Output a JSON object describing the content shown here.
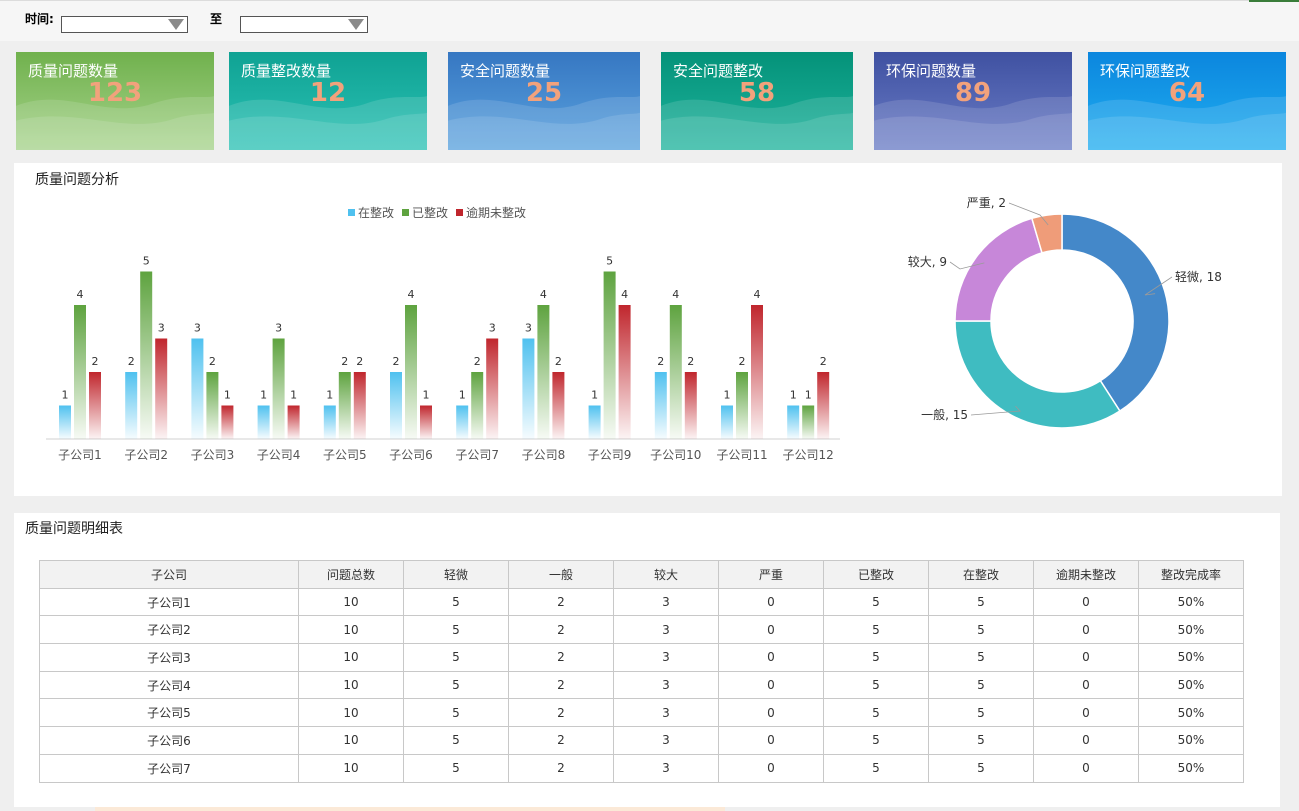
{
  "filter": {
    "time_label": "时间:",
    "to_label": "至",
    "start_value": "",
    "end_value": ""
  },
  "kpis": [
    {
      "title": "质量问题数量",
      "value": "123",
      "color": "#6aaf4c"
    },
    {
      "title": "质量整改数量",
      "value": "12",
      "color": "#13a898"
    },
    {
      "title": "安全问题数量",
      "value": "25",
      "color": "#3a7fc6"
    },
    {
      "title": "安全问题整改",
      "value": "58",
      "color": "#07997f"
    },
    {
      "title": "环保问题数量",
      "value": "89",
      "color": "#4357a6"
    },
    {
      "title": "环保问题整改",
      "value": "64",
      "color": "#118ce0"
    }
  ],
  "analysis": {
    "title": "质量问题分析"
  },
  "chart_data": [
    {
      "type": "bar",
      "categories": [
        "子公司1",
        "子公司2",
        "子公司3",
        "子公司4",
        "子公司5",
        "子公司6",
        "子公司7",
        "子公司8",
        "子公司9",
        "子公司10",
        "子公司11",
        "子公司12"
      ],
      "series": [
        {
          "name": "在整改",
          "color": "#4fc1ef",
          "values": [
            1,
            2,
            3,
            1,
            1,
            2,
            1,
            3,
            1,
            2,
            1,
            1
          ]
        },
        {
          "name": "已整改",
          "color": "#5ea33f",
          "values": [
            4,
            5,
            2,
            3,
            2,
            4,
            2,
            4,
            5,
            4,
            2,
            1
          ]
        },
        {
          "name": "逾期未整改",
          "color": "#c0262d",
          "values": [
            2,
            3,
            1,
            1,
            2,
            1,
            3,
            2,
            4,
            2,
            4,
            2
          ]
        }
      ],
      "ylim": [
        0,
        5
      ],
      "legend": "top",
      "grid": false
    },
    {
      "type": "pie",
      "labels": [
        "轻微",
        "一般",
        "较大",
        "严重"
      ],
      "values": [
        18,
        15,
        9,
        2
      ],
      "colors": [
        "#4488c9",
        "#3fbcc1",
        "#c787d9",
        "#ef9c79"
      ],
      "label_text": [
        "轻微, 18",
        "一般, 15",
        "较大, 9",
        "严重, 2"
      ],
      "donut": true
    }
  ],
  "detail": {
    "title": "质量问题明细表",
    "headers": [
      "子公司",
      "问题总数",
      "轻微",
      "一般",
      "较大",
      "严重",
      "已整改",
      "在整改",
      "逾期未整改",
      "整改完成率"
    ],
    "rows": [
      [
        "子公司1",
        "10",
        "5",
        "2",
        "3",
        "0",
        "5",
        "5",
        "0",
        "50%"
      ],
      [
        "子公司2",
        "10",
        "5",
        "2",
        "3",
        "0",
        "5",
        "5",
        "0",
        "50%"
      ],
      [
        "子公司3",
        "10",
        "5",
        "2",
        "3",
        "0",
        "5",
        "5",
        "0",
        "50%"
      ],
      [
        "子公司4",
        "10",
        "5",
        "2",
        "3",
        "0",
        "5",
        "5",
        "0",
        "50%"
      ],
      [
        "子公司5",
        "10",
        "5",
        "2",
        "3",
        "0",
        "5",
        "5",
        "0",
        "50%"
      ],
      [
        "子公司6",
        "10",
        "5",
        "2",
        "3",
        "0",
        "5",
        "5",
        "0",
        "50%"
      ],
      [
        "子公司7",
        "10",
        "5",
        "2",
        "3",
        "0",
        "5",
        "5",
        "0",
        "50%"
      ]
    ]
  }
}
